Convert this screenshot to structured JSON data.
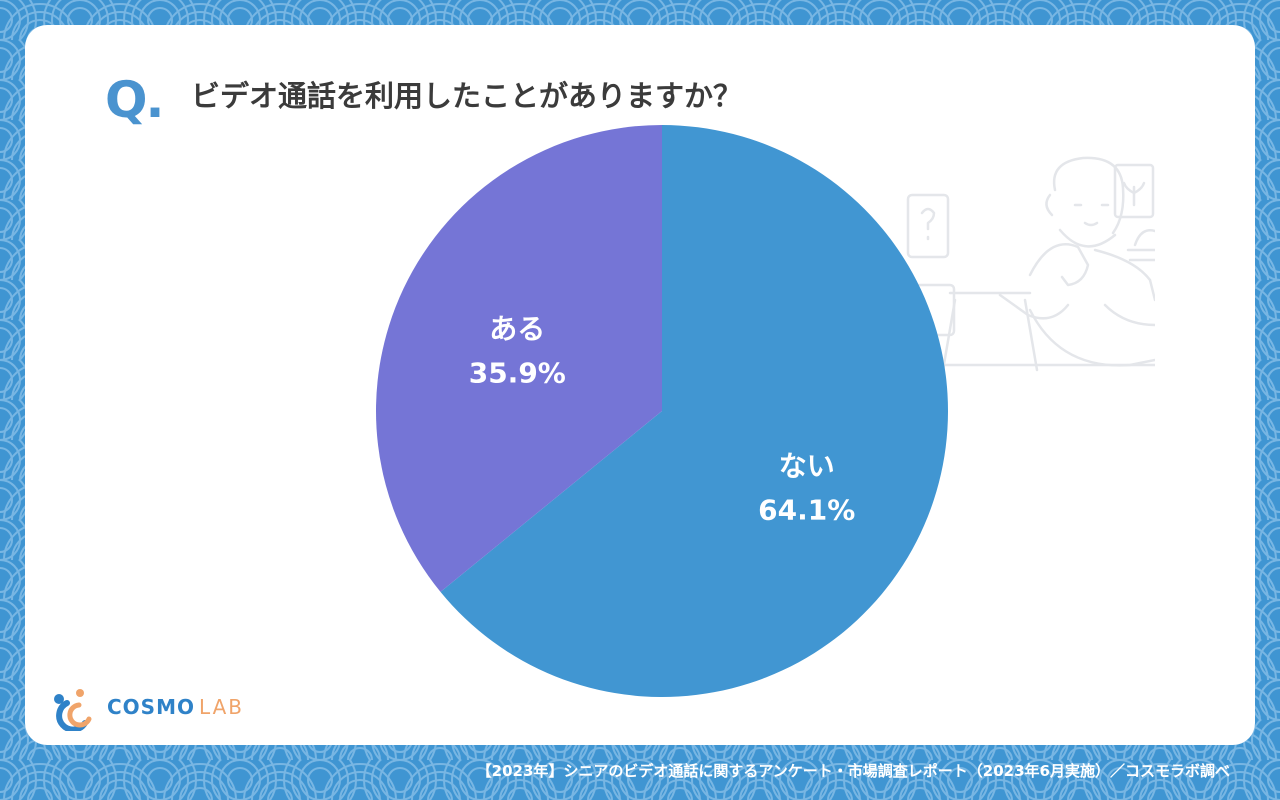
{
  "question": {
    "mark": "Q.",
    "text": "ビデオ通話を利用したことがありますか？"
  },
  "chart_data": {
    "type": "pie",
    "title": "ビデオ通話を利用したことがありますか？",
    "slices": [
      {
        "label": "ない",
        "value": 64.1,
        "value_text": "64.1%",
        "color": "#4196d2"
      },
      {
        "label": "ある",
        "value": 35.9,
        "value_text": "35.9%",
        "color": "#7575d6"
      }
    ],
    "start": "12 o'clock",
    "direction": "clockwise"
  },
  "logo": {
    "brand": "COSMO",
    "suffix": "LAB"
  },
  "footnote": "【2023年】シニアのビデオ通話に関するアンケート・市場調査レポート（2023年6月実施）／コスモラボ調べ",
  "colors": {
    "background": "#3f95d2",
    "card": "#ffffff",
    "accent": "#4a93cf",
    "logo_orange": "#f0a46a"
  },
  "icons": [
    "wave-pattern-background",
    "senior-thinking-illustration",
    "cosmo-lab-logo-icon"
  ]
}
